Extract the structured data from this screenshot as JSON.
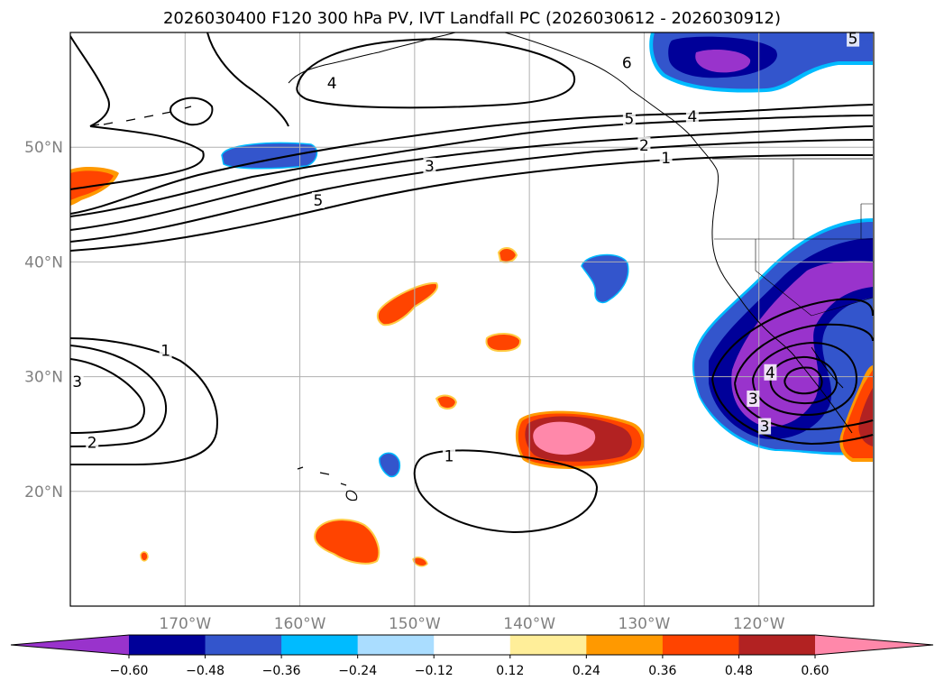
{
  "chart_data": {
    "type": "map",
    "title": "2026030400 F120 300 hPa PV, IVT Landfall PC (2026030612 - 2026030912)",
    "map_extent": {
      "lon": [
        -180,
        -110
      ],
      "lat": [
        10,
        60
      ]
    },
    "gridlines": true,
    "yticks": [
      {
        "lat": 50,
        "label": "50°N"
      },
      {
        "lat": 40,
        "label": "40°N"
      },
      {
        "lat": 30,
        "label": "30°N"
      },
      {
        "lat": 20,
        "label": "20°N"
      }
    ],
    "xticks": [
      {
        "lon": -170,
        "label": "170°W"
      },
      {
        "lon": -160,
        "label": "160°W"
      },
      {
        "lon": -150,
        "label": "150°W"
      },
      {
        "lon": -140,
        "label": "140°W"
      },
      {
        "lon": -130,
        "label": "130°W"
      },
      {
        "lon": -120,
        "label": "120°W"
      }
    ],
    "colorbar": {
      "levels": [
        -0.6,
        -0.48,
        -0.36,
        -0.24,
        -0.12,
        0.12,
        0.24,
        0.36,
        0.48,
        0.6
      ],
      "tick_labels": [
        "−0.60",
        "−0.48",
        "−0.36",
        "−0.24",
        "−0.12",
        "0.12",
        "0.24",
        "0.36",
        "0.48",
        "0.60"
      ],
      "colors": [
        "#9933cc",
        "#000099",
        "#3355cc",
        "#00bbff",
        "#aaddff",
        "#ffffff",
        "#ffee99",
        "#ff9900",
        "#ff4400",
        "#b22222",
        "#ff88aa"
      ],
      "extend": "both"
    },
    "contour_labels": [
      {
        "lon": -131.5,
        "lat": 57.3,
        "text": "6"
      },
      {
        "lon": -157.2,
        "lat": 55.5,
        "text": "4"
      },
      {
        "lon": -125.8,
        "lat": 52.6,
        "text": "4"
      },
      {
        "lon": -131.3,
        "lat": 52.4,
        "text": "5"
      },
      {
        "lon": -130.0,
        "lat": 50.1,
        "text": "2"
      },
      {
        "lon": -128.1,
        "lat": 49.0,
        "text": "1"
      },
      {
        "lon": -148.7,
        "lat": 48.3,
        "text": "3"
      },
      {
        "lon": -158.4,
        "lat": 45.3,
        "text": "5"
      },
      {
        "lon": -111.8,
        "lat": 59.4,
        "text": "5"
      },
      {
        "lon": -171.7,
        "lat": 32.2,
        "text": "1"
      },
      {
        "lon": -179.4,
        "lat": 29.5,
        "text": "3"
      },
      {
        "lon": -178.1,
        "lat": 24.2,
        "text": "2"
      },
      {
        "lon": -147.0,
        "lat": 23.0,
        "text": "1"
      },
      {
        "lon": -119.0,
        "lat": 30.3,
        "text": "4"
      },
      {
        "lon": -120.5,
        "lat": 28.0,
        "text": "3"
      },
      {
        "lon": -119.5,
        "lat": 25.6,
        "text": "3"
      }
    ]
  }
}
